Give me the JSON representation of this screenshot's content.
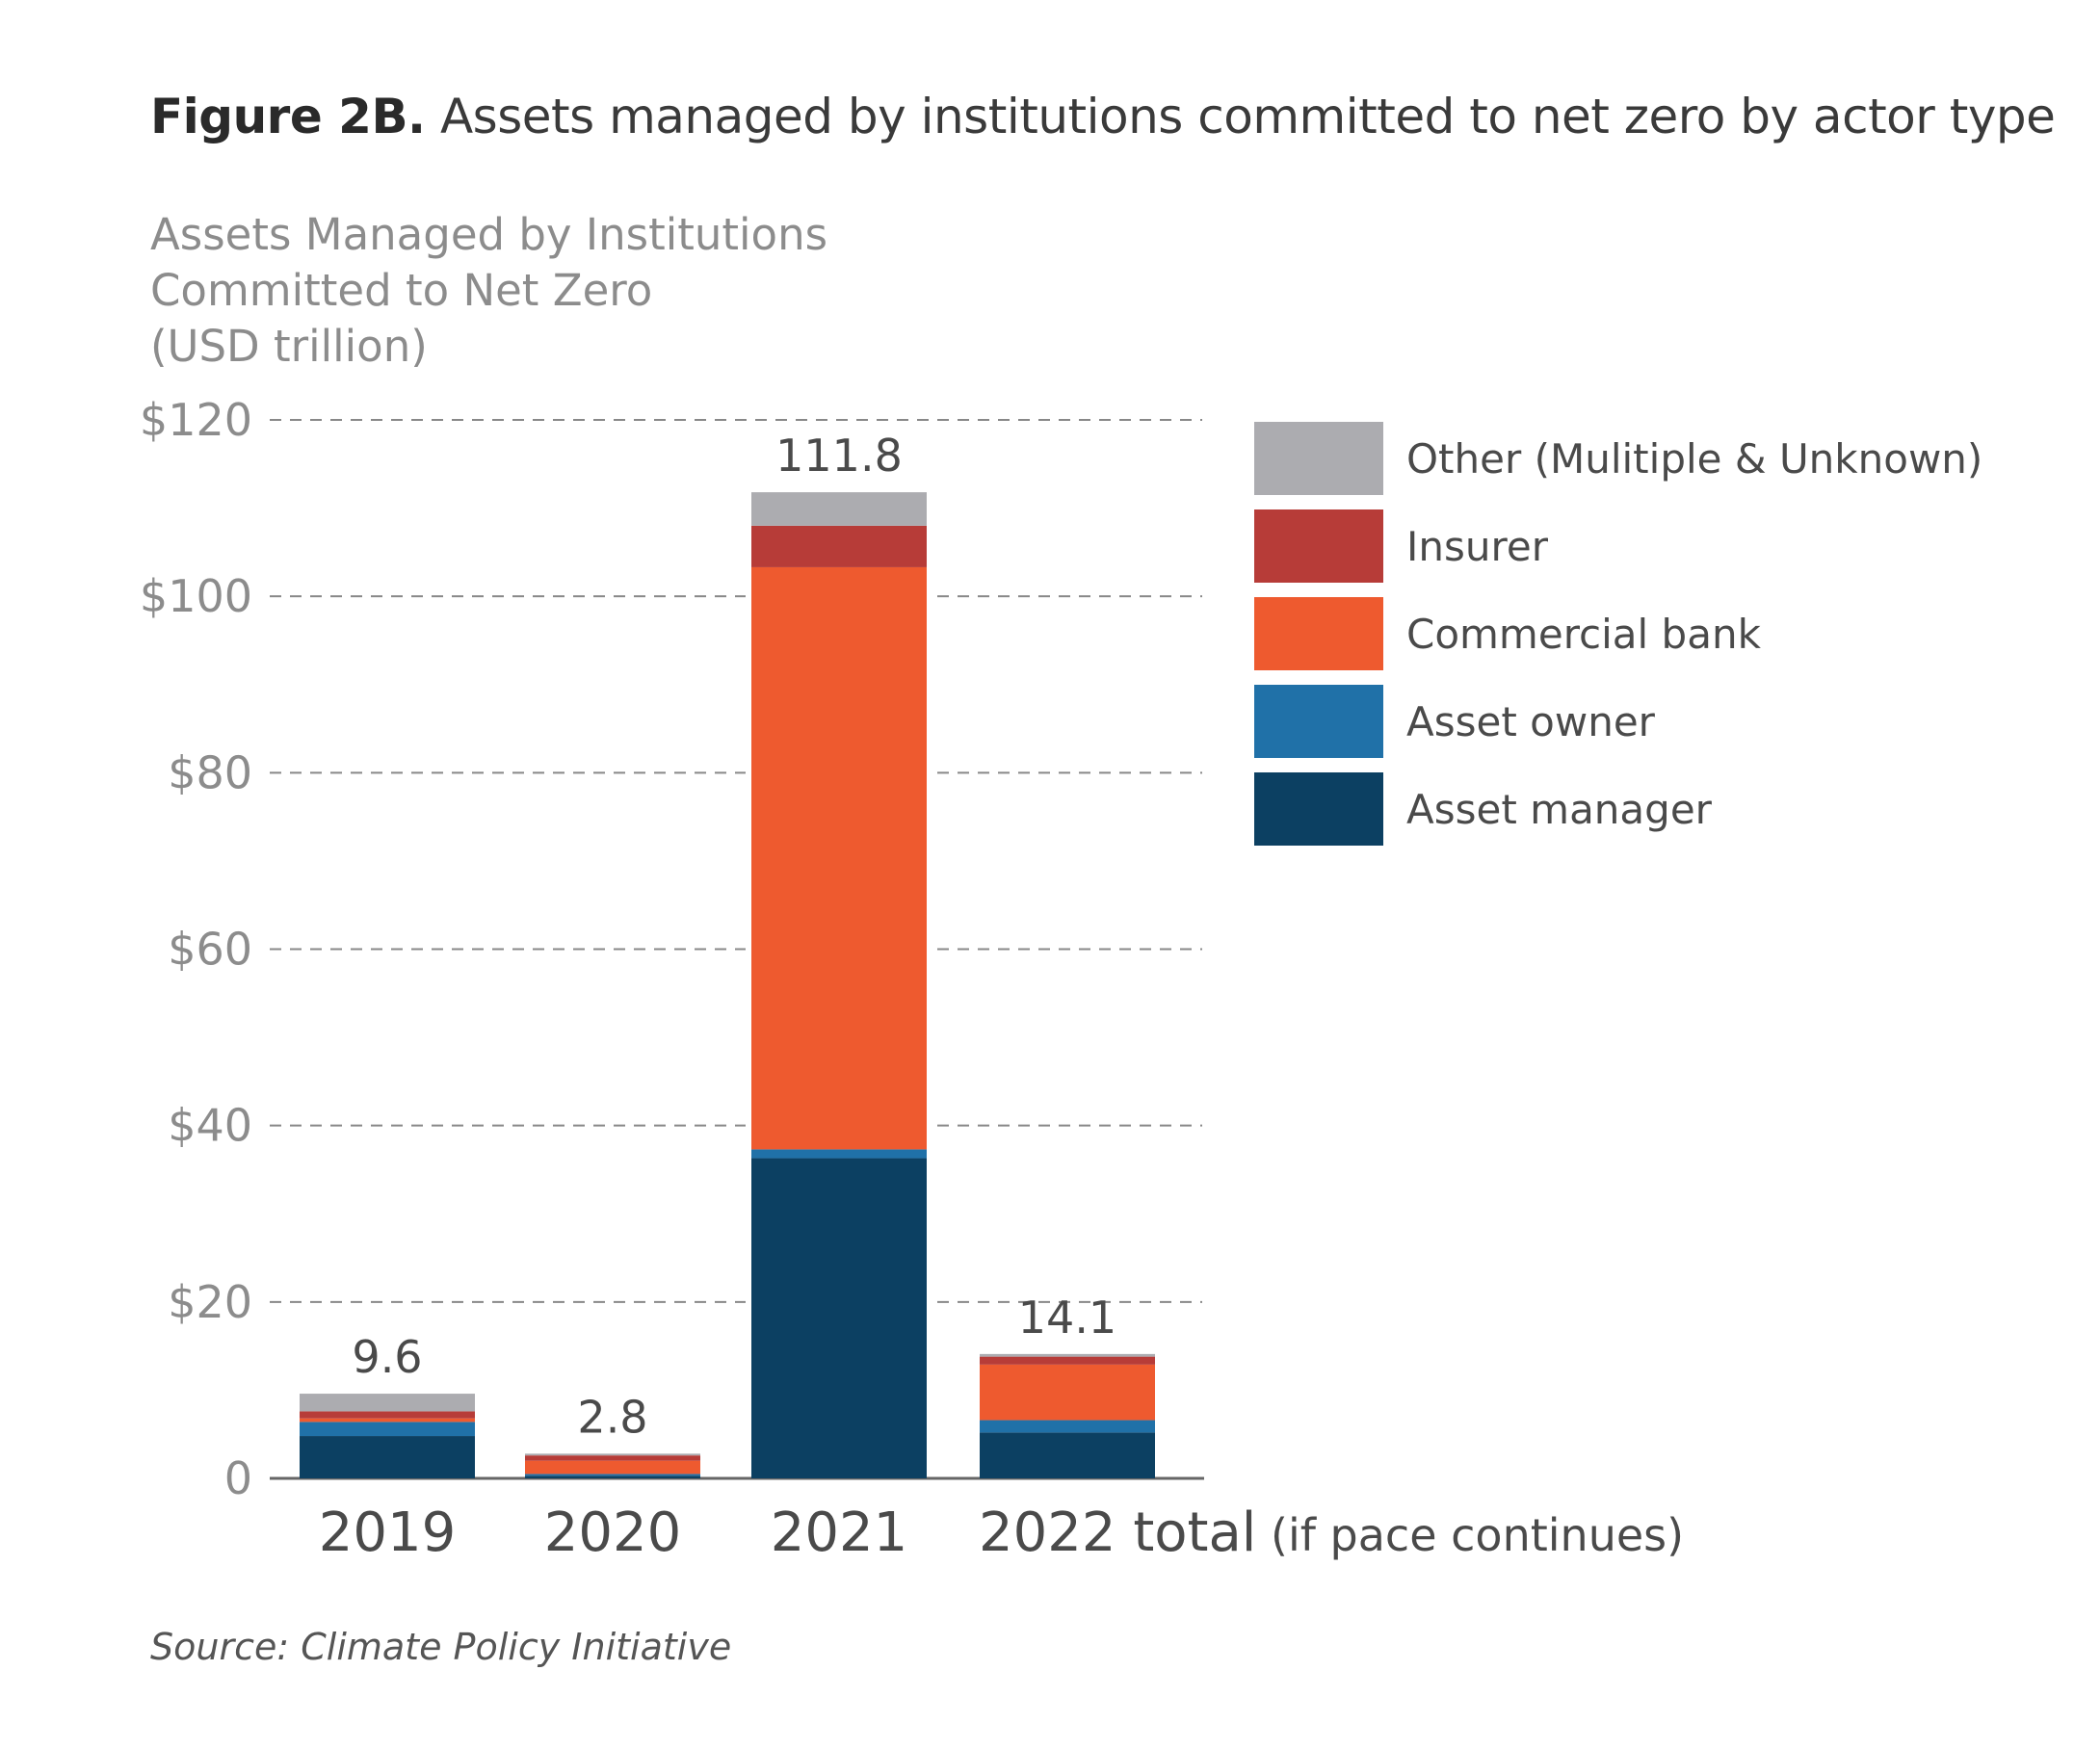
{
  "figure": {
    "title_bold": "Figure 2B.",
    "title_rest": " Assets managed by institutions committed to net zero by actor type",
    "source": "Source: Climate Policy Initiative"
  },
  "chart_data": {
    "type": "bar",
    "stacked": true,
    "title": "Figure 2B. Assets managed by institutions committed to net zero by actor type",
    "ylabel_lines": [
      "Assets Managed by Institutions",
      "Committed to Net Zero",
      "(USD trillion)"
    ],
    "ylim": [
      0,
      120
    ],
    "yticks": [
      0,
      20,
      40,
      60,
      80,
      100,
      120
    ],
    "ytick_labels": [
      "0",
      "$20",
      "$40",
      "$60",
      "$80",
      "$100",
      "$120"
    ],
    "grid": true,
    "legend_position": "right",
    "categories": [
      {
        "main": "2019",
        "sub": ""
      },
      {
        "main": "2020",
        "sub": ""
      },
      {
        "main": "2021",
        "sub": ""
      },
      {
        "main": "2022 total",
        "sub": " (if pace continues)"
      }
    ],
    "totals": [
      9.6,
      2.8,
      111.8,
      14.1
    ],
    "total_labels": [
      "9.6",
      "2.8",
      "111.8",
      "14.1"
    ],
    "series": [
      {
        "name": "Asset manager",
        "color": "#0c4062",
        "values": [
          4.8,
          0.3,
          36.3,
          5.2
        ]
      },
      {
        "name": "Asset owner",
        "color": "#2071a8",
        "values": [
          1.6,
          0.2,
          1.0,
          1.4
        ]
      },
      {
        "name": "Commercial bank",
        "color": "#ee5a2f",
        "values": [
          0.4,
          1.5,
          66.0,
          6.3
        ]
      },
      {
        "name": "Insurer",
        "color": "#b73c38",
        "values": [
          0.8,
          0.6,
          4.7,
          0.9
        ]
      },
      {
        "name": "Other (Mulitiple & Unknown)",
        "color": "#acacb0",
        "values": [
          2.0,
          0.2,
          3.8,
          0.3
        ]
      }
    ],
    "legend_order": [
      "Other (Mulitiple & Unknown)",
      "Insurer",
      "Commercial bank",
      "Asset owner",
      "Asset manager"
    ]
  }
}
